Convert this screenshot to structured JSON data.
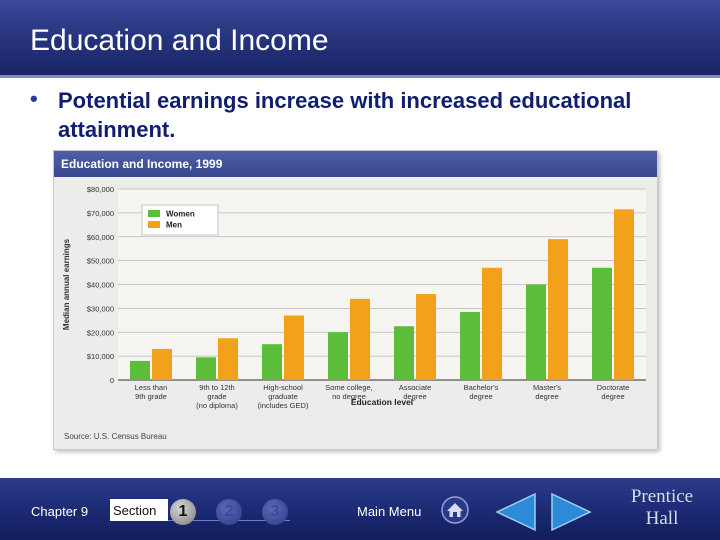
{
  "slide": {
    "title": "Education and Income",
    "bullet": "Potential earnings increase with increased educational attainment."
  },
  "figure": {
    "title": "Education and Income, 1999",
    "source": "Source: U.S. Census Bureau"
  },
  "chart_data": {
    "type": "bar",
    "title": "Education and Income, 1999",
    "xlabel": "Education level",
    "ylabel": "Median annual earnings",
    "ylim": [
      0,
      80000
    ],
    "yticks": [
      "0",
      "$10,000",
      "$20,000",
      "$30,000",
      "$40,000",
      "$50,000",
      "$60,000",
      "$70,000",
      "$80,000"
    ],
    "categories": [
      [
        "Less than",
        "9th grade"
      ],
      [
        "9th to 12th",
        "grade",
        "(no diploma)"
      ],
      [
        "High-school",
        "graduate",
        "(includes GED)"
      ],
      [
        "Some college,",
        "no degree"
      ],
      [
        "Associate",
        "degree"
      ],
      [
        "Bachelor's",
        "degree"
      ],
      [
        "Master's",
        "degree"
      ],
      [
        "Doctorate",
        "degree"
      ]
    ],
    "series": [
      {
        "name": "Women",
        "color": "#5bbd3a",
        "values": [
          8000,
          9500,
          15000,
          20000,
          22500,
          28500,
          40000,
          47000
        ]
      },
      {
        "name": "Men",
        "color": "#f2a21a",
        "values": [
          13000,
          17500,
          27000,
          34000,
          36000,
          47000,
          59000,
          71500
        ]
      }
    ],
    "legend": "top-left",
    "grid": true
  },
  "footer": {
    "chapter": "Chapter 9",
    "section_label": "Section",
    "sections": [
      "1",
      "2",
      "3"
    ],
    "main_menu": "Main Menu",
    "publisher_line1": "Prentice",
    "publisher_line2": "Hall"
  },
  "icons": {
    "home": "home-icon",
    "prev": "arrow-left-icon",
    "next": "arrow-right-icon"
  }
}
